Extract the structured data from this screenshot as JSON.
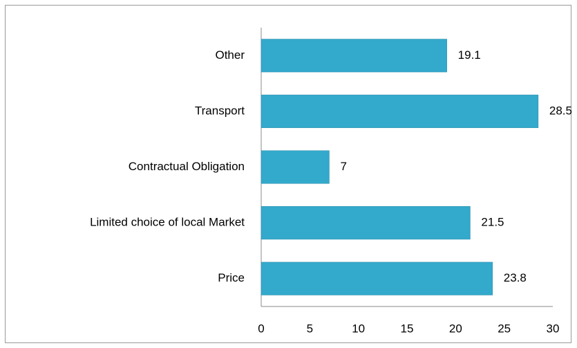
{
  "chart_data": {
    "type": "bar",
    "orientation": "horizontal",
    "categories": [
      "Other",
      "Transport",
      "Contractual Obligation",
      "Limited choice of local Market",
      "Price"
    ],
    "values": [
      19.1,
      28.5,
      7,
      21.5,
      23.8
    ],
    "color": "#33a9cc",
    "xlim": [
      0,
      30
    ],
    "xticks": [
      0,
      5,
      10,
      15,
      20,
      25,
      30
    ],
    "grid": false
  }
}
